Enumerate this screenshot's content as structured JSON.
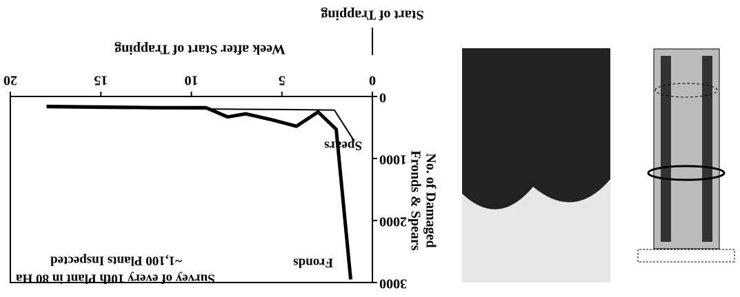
{
  "chart_data": {
    "type": "line",
    "xlabel": "Week after Start of Trapping",
    "ylabel": [
      "No. of Damaged",
      "Fronds & Spears"
    ],
    "marker_label": "Start of Trapping",
    "annotations": [
      "Survey of every 10th Plant in 80 Ha",
      "~1,100 Plants Inspected"
    ],
    "xlim": [
      0,
      20
    ],
    "xticks": [
      0,
      5,
      10,
      15,
      20
    ],
    "ylim": [
      0,
      3000
    ],
    "yticks": [
      0,
      1000,
      2000,
      3000
    ],
    "series": [
      {
        "name": "Fronds",
        "color": "#000000",
        "width": 5,
        "x": [
          1.2,
          2,
          3,
          4.2,
          5.5,
          7,
          8,
          9.2,
          12,
          15,
          18
        ],
        "values": [
          2950,
          530,
          250,
          480,
          380,
          280,
          330,
          180,
          180,
          170,
          160
        ]
      },
      {
        "name": "Spears",
        "color": "#000000",
        "width": 2,
        "x": [
          1,
          2.1,
          5,
          10,
          15,
          18
        ],
        "values": [
          720,
          220,
          210,
          200,
          190,
          180
        ]
      }
    ]
  }
}
